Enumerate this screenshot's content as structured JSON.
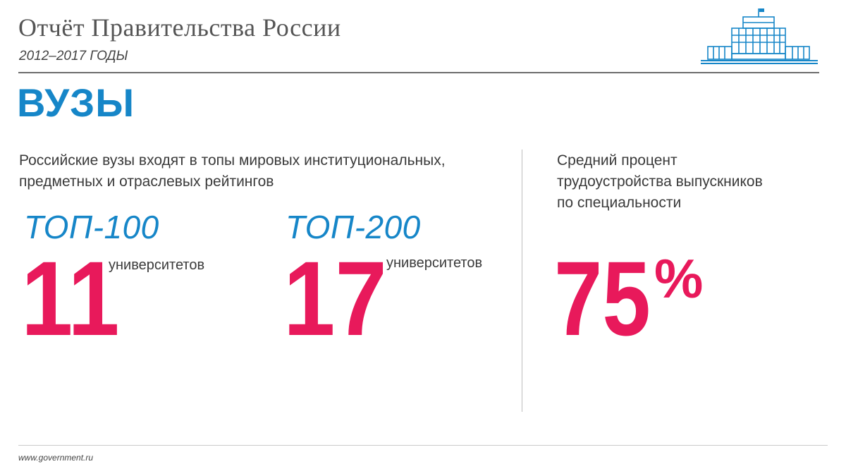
{
  "header": {
    "title": "Отчёт Правительства России",
    "subtitle": "2012–2017 ГОДЫ",
    "emblem_icon": "government-house-icon",
    "emblem_color": "#1686c8"
  },
  "section": {
    "title": "ВУЗЫ"
  },
  "left": {
    "intro_lines": [
      "Российские вузы входят в топы мировых институциональных,",
      "предметных и отраслевых рейтингов"
    ],
    "stats": [
      {
        "label": "ТОП-100",
        "value": "11",
        "unit": "университетов"
      },
      {
        "label": "ТОП-200",
        "value": "17",
        "unit": "университетов"
      }
    ]
  },
  "right": {
    "intro_lines": [
      "Средний процент",
      "трудоустройства выпускников",
      "по специальности"
    ],
    "value": "75",
    "percent_sign": "%"
  },
  "footer": {
    "url": "www.government.ru"
  },
  "colors": {
    "accent_blue": "#1686c8",
    "accent_pink": "#e8195b",
    "text": "#3a3a3a"
  }
}
